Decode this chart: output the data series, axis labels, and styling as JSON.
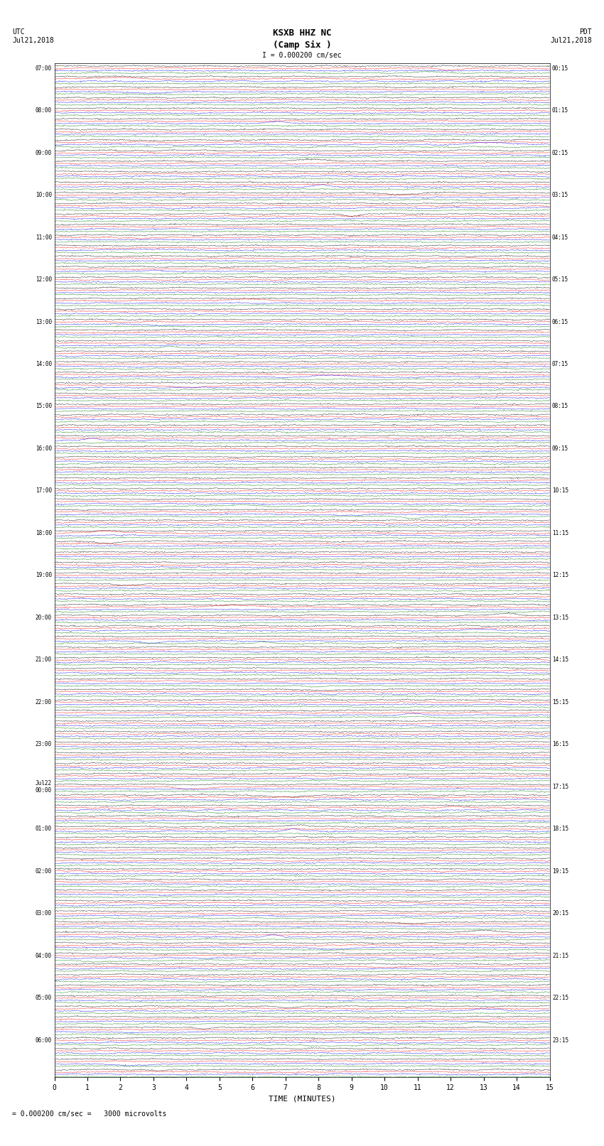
{
  "title_line1": "KSXB HHZ NC",
  "title_line2": "(Camp Six )",
  "scale_text": "I = 0.000200 cm/sec",
  "bottom_scale_text": "= 0.000200 cm/sec =   3000 microvolts",
  "label_left": "UTC",
  "label_left2": "Jul21,2018",
  "label_right": "PDT",
  "label_right2": "Jul21,2018",
  "xlabel": "TIME (MINUTES)",
  "fig_width": 8.5,
  "fig_height": 16.13,
  "dpi": 100,
  "xlim": [
    0,
    15
  ],
  "xticks": [
    0,
    1,
    2,
    3,
    4,
    5,
    6,
    7,
    8,
    9,
    10,
    11,
    12,
    13,
    14,
    15
  ],
  "colors": [
    "black",
    "red",
    "blue",
    "green"
  ],
  "left_times": [
    "07:00",
    "",
    "",
    "",
    "08:00",
    "",
    "",
    "",
    "09:00",
    "",
    "",
    "",
    "10:00",
    "",
    "",
    "",
    "11:00",
    "",
    "",
    "",
    "12:00",
    "",
    "",
    "",
    "13:00",
    "",
    "",
    "",
    "14:00",
    "",
    "",
    "",
    "15:00",
    "",
    "",
    "",
    "16:00",
    "",
    "",
    "",
    "17:00",
    "",
    "",
    "",
    "18:00",
    "",
    "",
    "",
    "19:00",
    "",
    "",
    "",
    "20:00",
    "",
    "",
    "",
    "21:00",
    "",
    "",
    "",
    "22:00",
    "",
    "",
    "",
    "23:00",
    "",
    "",
    "",
    "Jul22\n00:00",
    "",
    "",
    "",
    "01:00",
    "",
    "",
    "",
    "02:00",
    "",
    "",
    "",
    "03:00",
    "",
    "",
    "",
    "04:00",
    "",
    "",
    "",
    "05:00",
    "",
    "",
    "",
    "06:00",
    "",
    "",
    ""
  ],
  "right_times": [
    "00:15",
    "",
    "",
    "",
    "01:15",
    "",
    "",
    "",
    "02:15",
    "",
    "",
    "",
    "03:15",
    "",
    "",
    "",
    "04:15",
    "",
    "",
    "",
    "05:15",
    "",
    "",
    "",
    "06:15",
    "",
    "",
    "",
    "07:15",
    "",
    "",
    "",
    "08:15",
    "",
    "",
    "",
    "09:15",
    "",
    "",
    "",
    "10:15",
    "",
    "",
    "",
    "11:15",
    "",
    "",
    "",
    "12:15",
    "",
    "",
    "",
    "13:15",
    "",
    "",
    "",
    "14:15",
    "",
    "",
    "",
    "15:15",
    "",
    "",
    "",
    "16:15",
    "",
    "",
    "",
    "17:15",
    "",
    "",
    "",
    "18:15",
    "",
    "",
    "",
    "19:15",
    "",
    "",
    "",
    "20:15",
    "",
    "",
    "",
    "21:15",
    "",
    "",
    "",
    "22:15",
    "",
    "",
    "",
    "23:15",
    "",
    "",
    ""
  ],
  "n_rows": 96,
  "n_cols": 4,
  "amplitude": 0.35,
  "noise_seed": 42
}
